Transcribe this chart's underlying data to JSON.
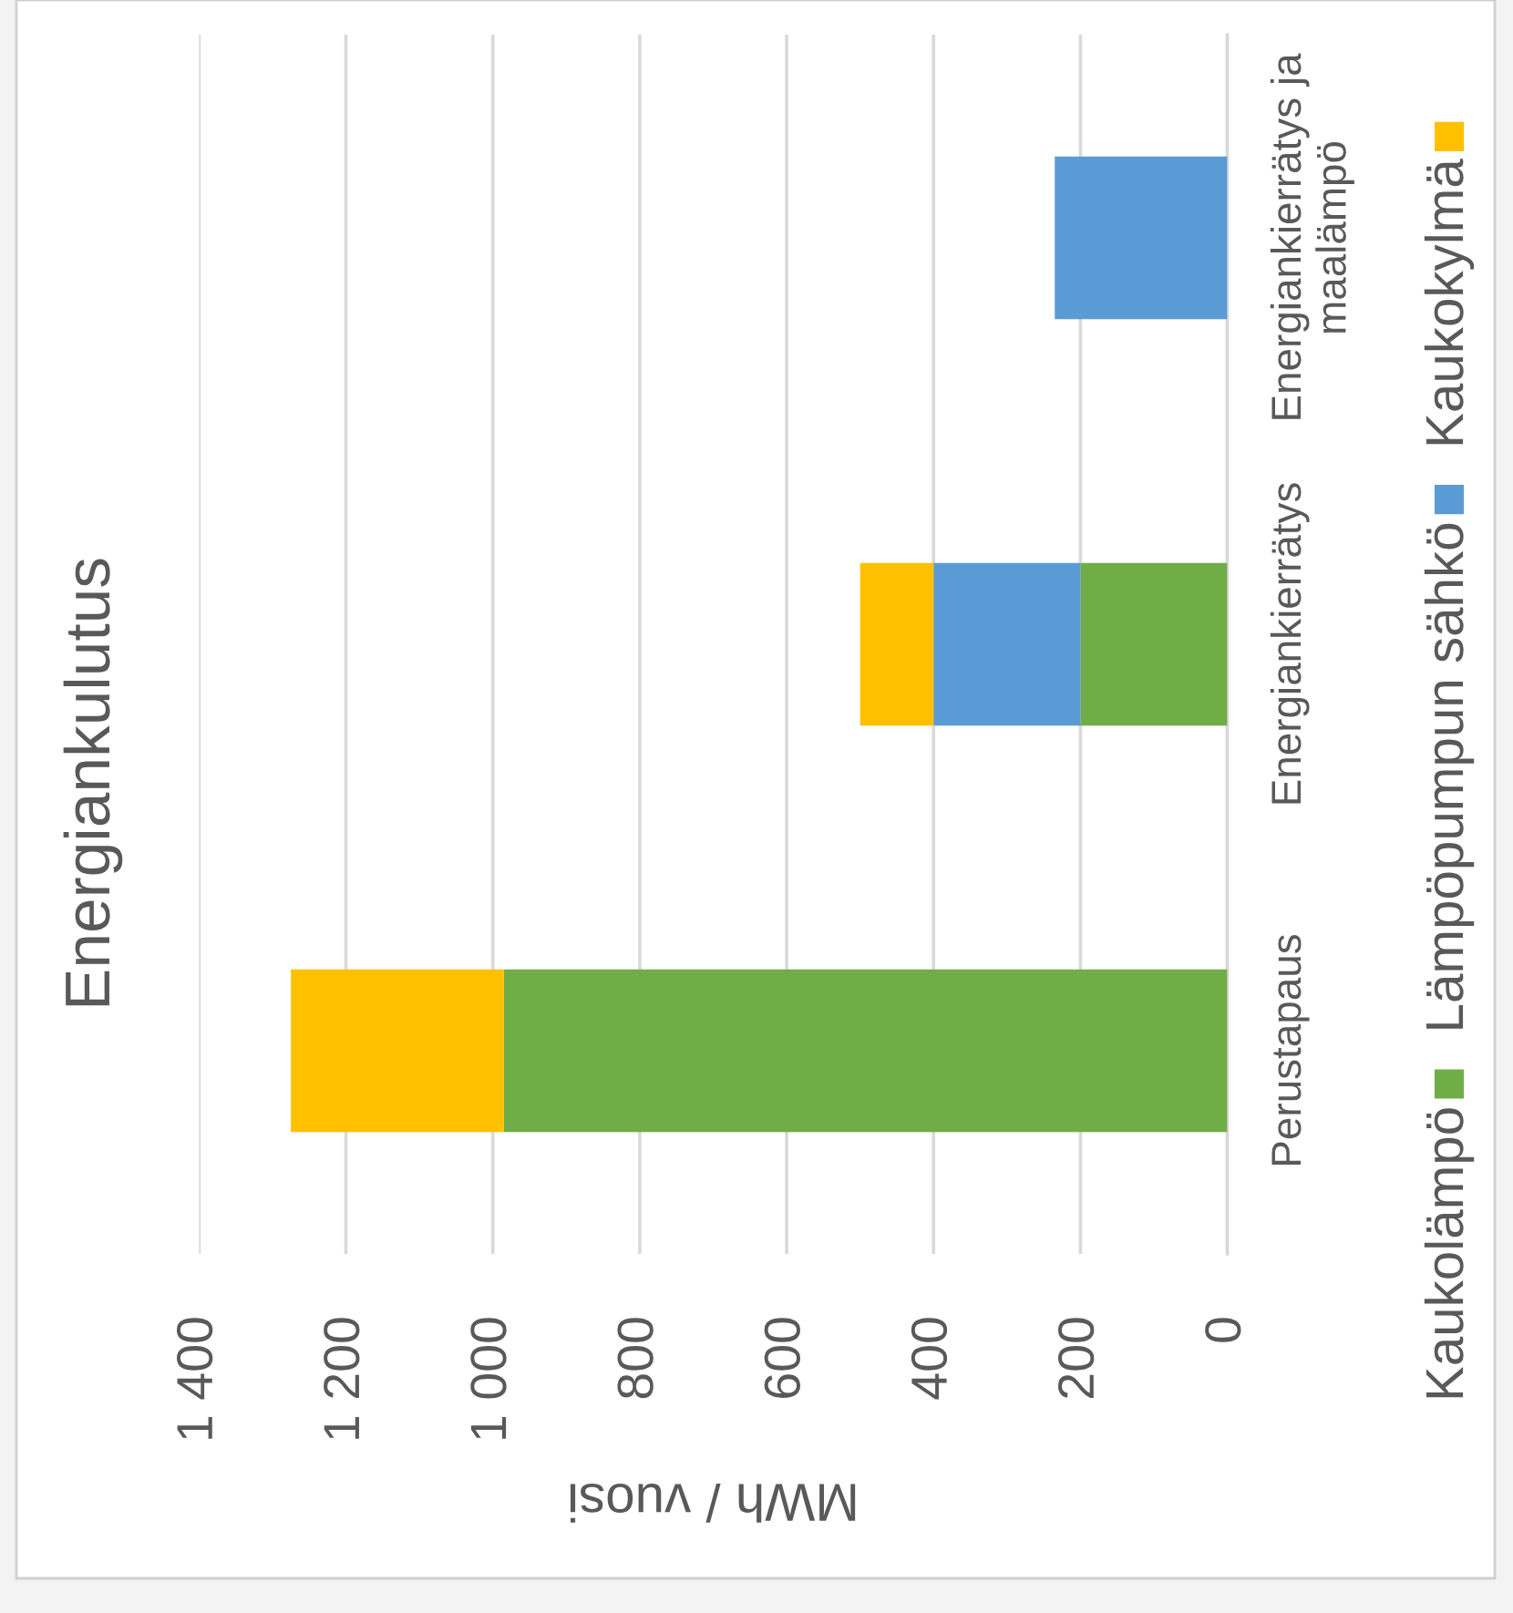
{
  "chart_data": {
    "type": "bar",
    "orientation": "horizontal",
    "stacked": true,
    "title": "Energiankulutus",
    "xlabel": "MWh / vuosi",
    "categories": [
      "Energiankierrätys ja\nmaalämpö",
      "Energiankierrätys",
      "Perustapaus"
    ],
    "series": [
      {
        "name": "Kaukolämpö",
        "color": "#70ad47",
        "values": [
          null,
          200,
          985
        ]
      },
      {
        "name": "Lämpöpumpun sähkö",
        "color": "#5b9bd5",
        "values": [
          235,
          200,
          null
        ]
      },
      {
        "name": "Kaukokylmä",
        "color": "#ffc000",
        "values": [
          null,
          100,
          290
        ]
      }
    ],
    "xlim": [
      1400,
      0
    ],
    "xticks": [
      {
        "value": 1400,
        "label": "1 400"
      },
      {
        "value": 1200,
        "label": "1 200"
      },
      {
        "value": 1000,
        "label": "1 000"
      },
      800,
      600,
      400,
      200,
      0
    ],
    "grid": "x",
    "legend": "right"
  }
}
